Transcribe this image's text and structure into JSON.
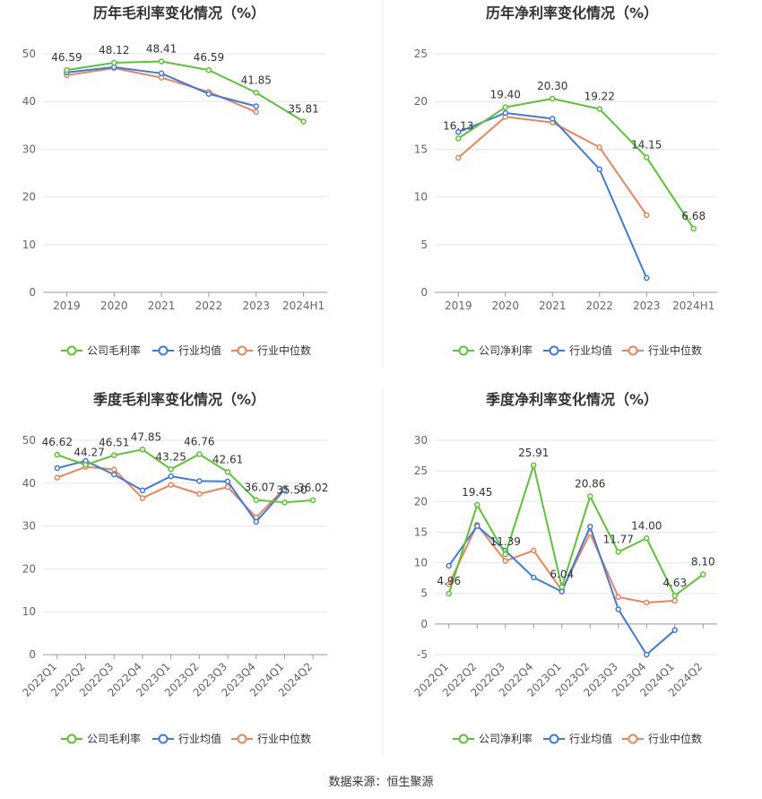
{
  "colors": {
    "company": "#5bc530",
    "avg": "#3f7ae0",
    "median": "#f08258",
    "grid": "#e6e6e6",
    "axis": "#999999"
  },
  "source": "数据来源：恒生聚源",
  "chart_data": [
    {
      "type": "line",
      "title": "历年毛利率变化情况（%）",
      "categories": [
        "2019",
        "2020",
        "2021",
        "2022",
        "2023",
        "2024H1"
      ],
      "ylim": [
        0,
        50
      ],
      "yticks": [
        "0",
        "10",
        "20",
        "30",
        "40",
        "50"
      ],
      "grid": true,
      "legend_position": "bottom",
      "series": [
        {
          "name": "公司毛利率",
          "values": [
            46.59,
            48.12,
            48.41,
            46.59,
            41.85,
            35.81
          ],
          "labels": [
            "46.59",
            "48.12",
            "48.41",
            "46.59",
            "41.85",
            "35.81"
          ]
        },
        {
          "name": "行业均值",
          "values": [
            46.1,
            47.2,
            45.9,
            41.6,
            39.0,
            null
          ]
        },
        {
          "name": "行业中位数",
          "values": [
            45.5,
            47.0,
            45.0,
            42.0,
            37.8,
            null
          ]
        }
      ]
    },
    {
      "type": "line",
      "title": "历年净利率变化情况（%）",
      "categories": [
        "2019",
        "2020",
        "2021",
        "2022",
        "2023",
        "2024H1"
      ],
      "ylim": [
        0,
        25
      ],
      "yticks": [
        "0",
        "5",
        "10",
        "15",
        "20",
        "25"
      ],
      "grid": true,
      "legend_position": "bottom",
      "series": [
        {
          "name": "公司净利率",
          "values": [
            16.13,
            19.4,
            20.3,
            19.22,
            14.15,
            6.68
          ],
          "labels": [
            "16.13",
            "19.40",
            "20.30",
            "19.22",
            "14.15",
            "6.68"
          ]
        },
        {
          "name": "行业均值",
          "values": [
            16.8,
            18.8,
            18.2,
            12.9,
            1.5,
            null
          ]
        },
        {
          "name": "行业中位数",
          "values": [
            14.1,
            18.4,
            17.8,
            15.2,
            8.1,
            null
          ]
        }
      ]
    },
    {
      "type": "line",
      "title": "季度毛利率变化情况（%）",
      "categories": [
        "2022Q1",
        "2022Q2",
        "2022Q3",
        "2022Q4",
        "2023Q1",
        "2023Q2",
        "2023Q3",
        "2023Q4",
        "2024Q1",
        "2024Q2"
      ],
      "ylim": [
        0,
        50
      ],
      "yticks": [
        "0",
        "10",
        "20",
        "30",
        "40",
        "50"
      ],
      "grid": true,
      "legend_position": "bottom",
      "series": [
        {
          "name": "公司毛利率",
          "values": [
            46.62,
            44.27,
            46.51,
            47.85,
            43.25,
            46.76,
            42.61,
            36.07,
            35.5,
            36.02
          ],
          "labels": [
            "46.62",
            "44.27",
            "46.51",
            "47.85",
            "43.25",
            "46.76",
            "42.61",
            "36.07",
            "35.50",
            "36.02"
          ]
        },
        {
          "name": "行业均值",
          "values": [
            43.5,
            45.2,
            42.0,
            38.3,
            41.6,
            40.5,
            40.4,
            31.0,
            38.5,
            null
          ]
        },
        {
          "name": "行业中位数",
          "values": [
            41.3,
            43.8,
            43.2,
            36.5,
            39.6,
            37.5,
            39.1,
            32.0,
            38.8,
            null
          ]
        }
      ]
    },
    {
      "type": "line",
      "title": "季度净利率变化情况（%）",
      "categories": [
        "2022Q1",
        "2022Q2",
        "2022Q3",
        "2022Q4",
        "2023Q1",
        "2023Q2",
        "2023Q3",
        "2023Q4",
        "2024Q1",
        "2024Q2"
      ],
      "ylim": [
        -5,
        30
      ],
      "yticks": [
        "-5",
        "0",
        "5",
        "10",
        "15",
        "20",
        "25",
        "30"
      ],
      "grid": true,
      "legend_position": "bottom",
      "series": [
        {
          "name": "公司净利率",
          "values": [
            4.96,
            19.45,
            11.39,
            25.91,
            6.04,
            20.86,
            11.77,
            14.0,
            4.63,
            8.1
          ],
          "labels": [
            "4.96",
            "19.45",
            "11.39",
            "25.91",
            "6.04",
            "20.86",
            "11.77",
            "14.00",
            "4.63",
            "8.10"
          ]
        },
        {
          "name": "行业均值",
          "values": [
            9.5,
            16.0,
            12.0,
            7.6,
            5.3,
            15.9,
            2.4,
            -5.0,
            -1.0,
            null
          ]
        },
        {
          "name": "行业中位数",
          "values": [
            6.5,
            16.2,
            10.3,
            12.0,
            5.5,
            14.8,
            4.4,
            3.5,
            3.8,
            null
          ]
        }
      ]
    }
  ]
}
